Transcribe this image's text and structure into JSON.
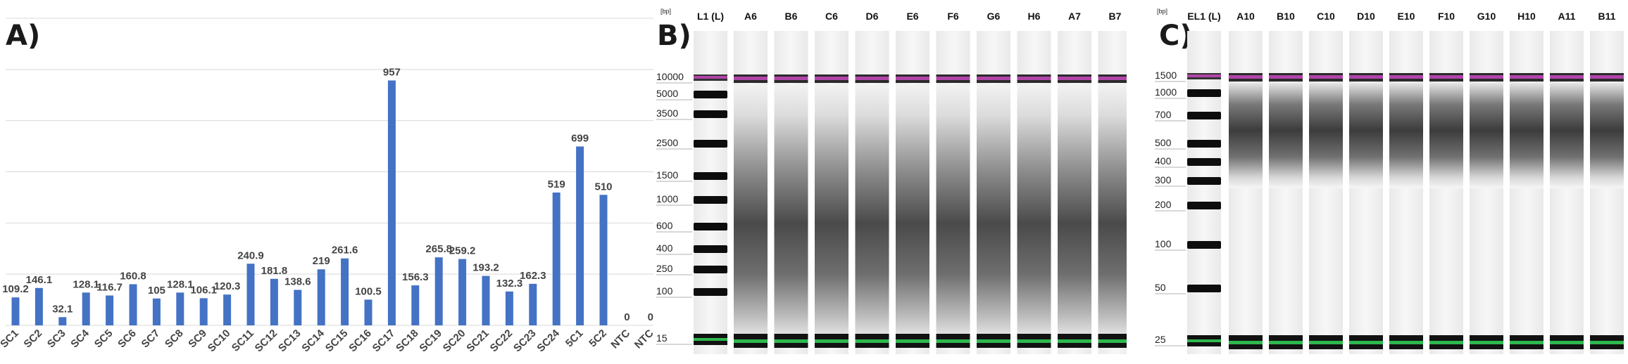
{
  "panels": {
    "a_label": "A)",
    "b_label": "B)",
    "c_label": "C)"
  },
  "chart_data": {
    "type": "bar",
    "title": "",
    "xlabel": "",
    "ylabel": "",
    "ylim": [
      0,
      1200
    ],
    "grid": true,
    "color": "#4472C4",
    "categories": [
      "SC1",
      "SC2",
      "SC3",
      "SC4",
      "SC5",
      "SC6",
      "SC7",
      "SC8",
      "SC9",
      "SC10",
      "SC11",
      "SC12",
      "SC13",
      "SC14",
      "SC15",
      "SC16",
      "SC17",
      "SC18",
      "SC19",
      "SC20",
      "SC21",
      "SC22",
      "SC23",
      "SC24",
      "5C1",
      "5C2",
      "NTC",
      "NTC"
    ],
    "values": [
      109.2,
      146.1,
      32.1,
      128.1,
      116.7,
      160.8,
      105,
      128.1,
      106.1,
      120.3,
      240.9,
      181.8,
      138.6,
      219,
      261.6,
      100.5,
      957,
      156.3,
      265.8,
      259.2,
      193.2,
      132.3,
      162.3,
      519,
      699,
      510,
      0,
      0
    ],
    "value_labels": [
      "109.2",
      "146.1",
      "32.1",
      "128.1",
      "116.7",
      "160.8",
      "105",
      "128.1",
      "106.1",
      "120.3",
      "240.9",
      "181.8",
      "138.6",
      "219",
      "261.6",
      "100.5",
      "957",
      "156.3",
      "265.8",
      "259.2",
      "193.2",
      "132.3",
      "162.3",
      "519",
      "699",
      "510",
      "0",
      "0"
    ]
  },
  "gel_b": {
    "unit_label": "[bp]",
    "ladder_label": "L1 (L)",
    "lanes": [
      "A6",
      "B6",
      "C6",
      "D6",
      "E6",
      "F6",
      "G6",
      "H6",
      "A7",
      "B7"
    ],
    "bp_marks": [
      "10000",
      "5000",
      "3500",
      "2500",
      "1500",
      "1000",
      "600",
      "400",
      "250",
      "100",
      "15"
    ],
    "upper_marker_color": "#b044a8",
    "lower_marker_color": "#2db84d"
  },
  "gel_c": {
    "unit_label": "[bp]",
    "ladder_label": "EL1 (L)",
    "lanes": [
      "A10",
      "B10",
      "C10",
      "D10",
      "E10",
      "F10",
      "G10",
      "H10",
      "A11",
      "B11"
    ],
    "bp_marks": [
      "1500",
      "1000",
      "700",
      "500",
      "400",
      "300",
      "200",
      "100",
      "50",
      "25"
    ],
    "upper_marker_color": "#b044a8",
    "lower_marker_color": "#2db84d"
  }
}
